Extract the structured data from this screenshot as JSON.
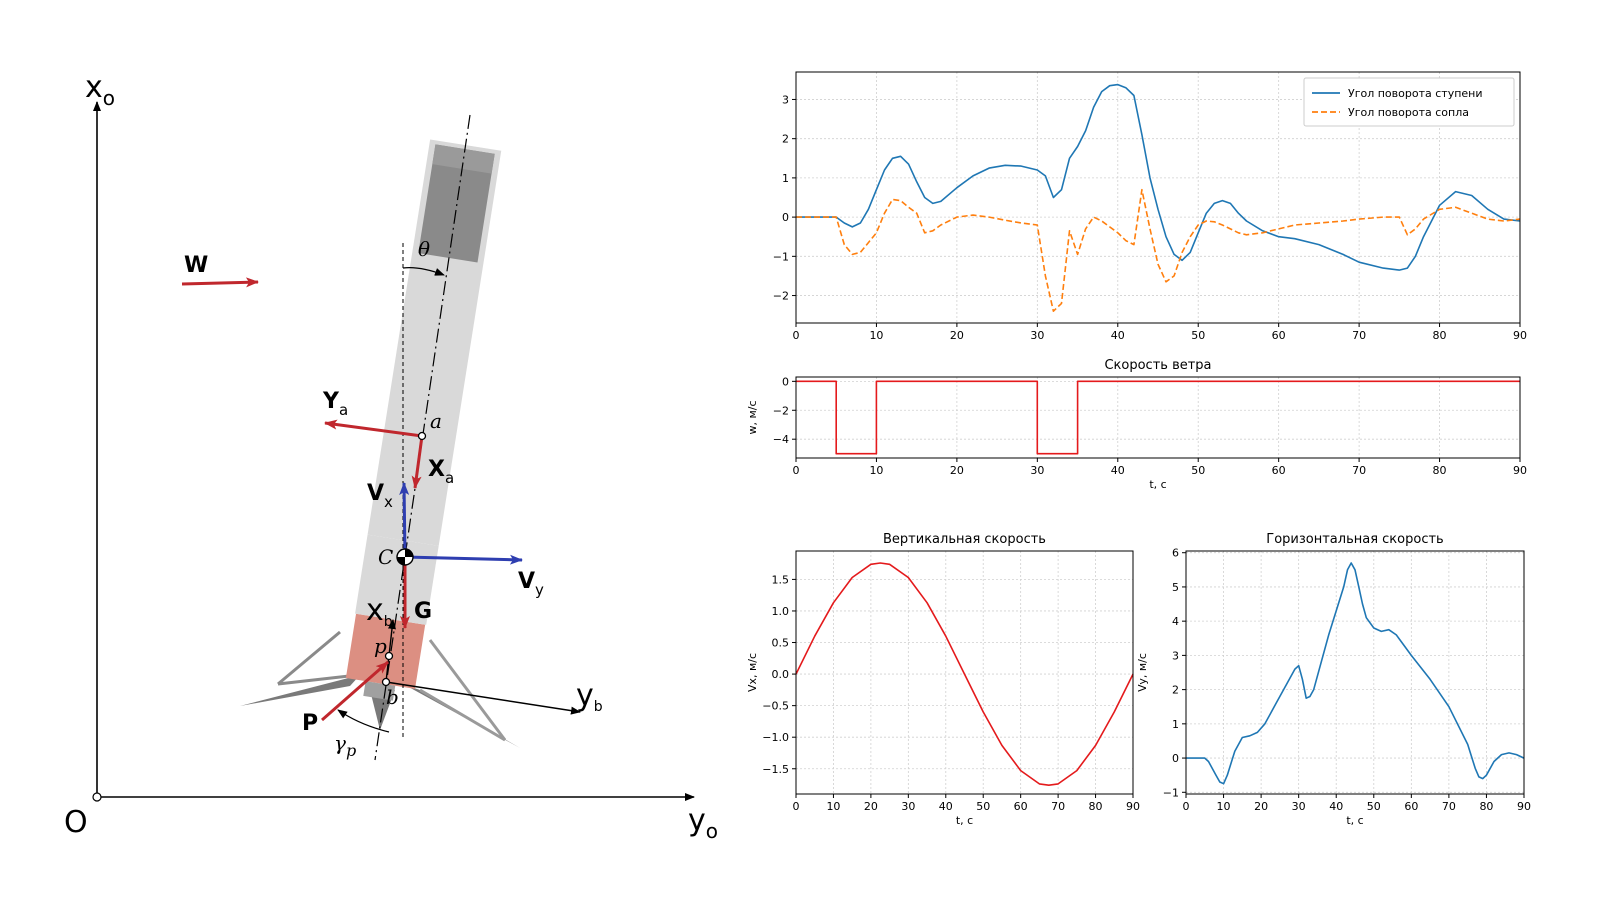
{
  "diagram": {
    "axis_x_label": "x",
    "axis_x_sub": "o",
    "axis_y_label": "y",
    "axis_y_sub": "o",
    "origin_label": "O",
    "wind_label": "W",
    "theta_label": "θ",
    "ya_label": "Y",
    "ya_sub": "a",
    "xa_label": "X",
    "xa_sub": "a",
    "a_label": "a",
    "vx_label": "V",
    "vx_sub": "x",
    "vy_label": "V",
    "vy_sub": "y",
    "c_label": "C",
    "g_label": "G",
    "xb_label": "x",
    "xb_sub": "b",
    "yb_label": "y",
    "yb_sub": "b",
    "p_label": "p",
    "b_label": "b",
    "thrust_label": "P",
    "gamma_label": "γ",
    "gamma_sub": "p",
    "colors": {
      "force": "#c0272d",
      "velocity": "#2e3eb0",
      "body": "#d9d9d9",
      "nozzle": "#dc8f82",
      "tank": "#8a8a8a"
    }
  },
  "chart_data": [
    {
      "type": "line",
      "id": "angles",
      "title": "",
      "xlabel": "",
      "ylabel": "",
      "xlim": [
        0,
        90
      ],
      "ylim": [
        -2.7,
        3.7
      ],
      "xticks": [
        0,
        10,
        20,
        30,
        40,
        50,
        60,
        70,
        80,
        90
      ],
      "yticks": [
        -2,
        -1,
        0,
        1,
        2,
        3
      ],
      "grid": true,
      "legend": "top-right",
      "series": [
        {
          "name": "Угол поворота ступени",
          "color": "#1f77b4",
          "style": "solid",
          "x": [
            0,
            5,
            6,
            7,
            8,
            9,
            10,
            11,
            12,
            13,
            14,
            15,
            16,
            17,
            18,
            20,
            22,
            24,
            26,
            28,
            30,
            31,
            32,
            33,
            34,
            35,
            36,
            37,
            38,
            39,
            40,
            41,
            42,
            43,
            44,
            45,
            46,
            47,
            48,
            49,
            50,
            51,
            52,
            53,
            54,
            55,
            56,
            58,
            60,
            62,
            65,
            68,
            70,
            73,
            75,
            76,
            77,
            78,
            80,
            82,
            84,
            86,
            88,
            90
          ],
          "y": [
            0,
            0,
            -0.15,
            -0.25,
            -0.15,
            0.2,
            0.7,
            1.2,
            1.5,
            1.55,
            1.35,
            0.9,
            0.5,
            0.35,
            0.4,
            0.75,
            1.05,
            1.25,
            1.32,
            1.3,
            1.2,
            1.05,
            0.5,
            0.7,
            1.5,
            1.8,
            2.2,
            2.8,
            3.2,
            3.35,
            3.38,
            3.3,
            3.1,
            2.1,
            1.0,
            0.2,
            -0.5,
            -0.95,
            -1.1,
            -0.9,
            -0.4,
            0.1,
            0.35,
            0.42,
            0.35,
            0.1,
            -0.1,
            -0.35,
            -0.5,
            -0.55,
            -0.7,
            -0.95,
            -1.15,
            -1.3,
            -1.35,
            -1.3,
            -1.0,
            -0.5,
            0.3,
            0.65,
            0.55,
            0.2,
            -0.05,
            -0.1
          ]
        },
        {
          "name": "Угол поворота сопла",
          "color": "#ff7f0e",
          "style": "dashed",
          "x": [
            0,
            5,
            6,
            7,
            8,
            9,
            10,
            11,
            12,
            13,
            14,
            15,
            16,
            17,
            18,
            20,
            22,
            24,
            26,
            28,
            30,
            31,
            32,
            33,
            34,
            35,
            36,
            37,
            38,
            39,
            40,
            41,
            42,
            43,
            44,
            45,
            46,
            47,
            48,
            49,
            50,
            51,
            52,
            53,
            54,
            55,
            56,
            58,
            60,
            62,
            65,
            68,
            70,
            73,
            75,
            76,
            77,
            78,
            80,
            82,
            84,
            86,
            88,
            90
          ],
          "y": [
            0,
            0,
            -0.7,
            -0.95,
            -0.9,
            -0.65,
            -0.4,
            0.1,
            0.45,
            0.42,
            0.25,
            0.1,
            -0.4,
            -0.35,
            -0.2,
            0.0,
            0.05,
            0.0,
            -0.08,
            -0.15,
            -0.2,
            -1.5,
            -2.4,
            -2.2,
            -0.35,
            -0.95,
            -0.3,
            0.0,
            -0.1,
            -0.25,
            -0.4,
            -0.6,
            -0.7,
            0.7,
            -0.3,
            -1.2,
            -1.65,
            -1.5,
            -0.9,
            -0.5,
            -0.2,
            -0.1,
            -0.12,
            -0.2,
            -0.3,
            -0.4,
            -0.45,
            -0.4,
            -0.3,
            -0.2,
            -0.15,
            -0.1,
            -0.05,
            0.0,
            0.0,
            -0.45,
            -0.3,
            -0.05,
            0.2,
            0.25,
            0.1,
            -0.05,
            -0.1,
            -0.05
          ]
        }
      ]
    },
    {
      "type": "line",
      "id": "wind",
      "title": "Скорость ветра",
      "xlabel": "t, с",
      "ylabel": "w, м/с",
      "xlim": [
        0,
        90
      ],
      "ylim": [
        -5.3,
        0.3
      ],
      "xticks": [
        0,
        10,
        20,
        30,
        40,
        50,
        60,
        70,
        80,
        90
      ],
      "yticks": [
        -4,
        -2,
        0
      ],
      "grid": true,
      "series": [
        {
          "color": "#e41a1c",
          "style": "solid",
          "x": [
            0,
            5,
            5,
            10,
            10,
            30,
            30,
            35,
            35,
            90
          ],
          "y": [
            0,
            0,
            -5,
            -5,
            0,
            0,
            -5,
            -5,
            0,
            0
          ]
        }
      ]
    },
    {
      "type": "line",
      "id": "vx",
      "title": "Вертикальная скорость",
      "xlabel": "t, с",
      "ylabel": "Vx, м/с",
      "xlim": [
        0,
        90
      ],
      "ylim": [
        -1.9,
        1.95
      ],
      "xticks": [
        0,
        10,
        20,
        30,
        40,
        50,
        60,
        70,
        80,
        90
      ],
      "yticks": [
        -1.5,
        -1.0,
        -0.5,
        0.0,
        0.5,
        1.0,
        1.5
      ],
      "ytick_labels": [
        "−1.5",
        "−1.0",
        "−0.5",
        "0.0",
        "0.5",
        "1.0",
        "1.5"
      ],
      "grid": true,
      "series": [
        {
          "color": "#e41a1c",
          "style": "solid",
          "x": [
            0,
            5,
            10,
            15,
            20,
            22.5,
            25,
            30,
            35,
            40,
            45,
            50,
            55,
            60,
            65,
            67.5,
            70,
            75,
            80,
            85,
            90
          ],
          "y": [
            0,
            0.6,
            1.13,
            1.53,
            1.74,
            1.76,
            1.74,
            1.53,
            1.13,
            0.6,
            0,
            -0.6,
            -1.13,
            -1.53,
            -1.74,
            -1.76,
            -1.74,
            -1.53,
            -1.13,
            -0.6,
            0
          ]
        }
      ]
    },
    {
      "type": "line",
      "id": "vy",
      "title": "Горизонтальная скорость",
      "xlabel": "t, с",
      "ylabel": "Vy, м/с",
      "xlim": [
        0,
        90
      ],
      "ylim": [
        -1.05,
        6.05
      ],
      "xticks": [
        0,
        10,
        20,
        30,
        40,
        50,
        60,
        70,
        80,
        90
      ],
      "yticks": [
        -1,
        0,
        1,
        2,
        3,
        4,
        5,
        6
      ],
      "grid": true,
      "series": [
        {
          "color": "#1f77b4",
          "style": "solid",
          "x": [
            0,
            5,
            6,
            8,
            9,
            10,
            11,
            13,
            15,
            17,
            19,
            21,
            24,
            27,
            29,
            30,
            31,
            32,
            33,
            34,
            36,
            38,
            40,
            42,
            43,
            44,
            45,
            46,
            47,
            48,
            50,
            52,
            54,
            56,
            58,
            60,
            65,
            70,
            75,
            77,
            78,
            79,
            80,
            82,
            84,
            86,
            88,
            90
          ],
          "y": [
            0,
            0,
            -0.1,
            -0.5,
            -0.7,
            -0.75,
            -0.5,
            0.2,
            0.6,
            0.65,
            0.75,
            1.0,
            1.6,
            2.2,
            2.6,
            2.7,
            2.3,
            1.75,
            1.8,
            2.0,
            2.8,
            3.6,
            4.3,
            5.0,
            5.5,
            5.7,
            5.5,
            5.0,
            4.5,
            4.1,
            3.8,
            3.7,
            3.75,
            3.6,
            3.3,
            3.0,
            2.3,
            1.5,
            0.4,
            -0.3,
            -0.55,
            -0.6,
            -0.5,
            -0.1,
            0.1,
            0.15,
            0.1,
            0.0
          ]
        }
      ]
    }
  ]
}
